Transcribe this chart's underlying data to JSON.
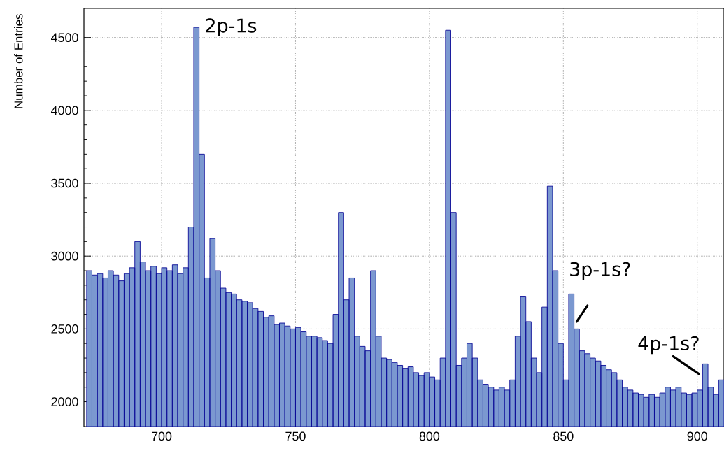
{
  "chart_data": {
    "type": "histogram",
    "ylabel": "Number of Entries",
    "bins": [
      672,
      674,
      676,
      678,
      680,
      682,
      684,
      686,
      688,
      690,
      692,
      694,
      696,
      698,
      700,
      702,
      704,
      706,
      708,
      710,
      712,
      714,
      716,
      718,
      720,
      722,
      724,
      726,
      728,
      730,
      732,
      734,
      736,
      738,
      740,
      742,
      744,
      746,
      748,
      750,
      752,
      754,
      756,
      758,
      760,
      762,
      764,
      766,
      768,
      770,
      772,
      774,
      776,
      778,
      780,
      782,
      784,
      786,
      788,
      790,
      792,
      794,
      796,
      798,
      800,
      802,
      804,
      806,
      808,
      810,
      812,
      814,
      816,
      818,
      820,
      822,
      824,
      826,
      828,
      830,
      832,
      834,
      836,
      838,
      840,
      842,
      844,
      846,
      848,
      850,
      852,
      854,
      856,
      858,
      860,
      862,
      864,
      866,
      868,
      870,
      872,
      874,
      876,
      878,
      880,
      882,
      884,
      886,
      888,
      890,
      892,
      894,
      896,
      898,
      900,
      902,
      904,
      906,
      908,
      910
    ],
    "values": [
      2900,
      2870,
      2880,
      2850,
      2900,
      2870,
      2830,
      2880,
      2920,
      3100,
      2960,
      2900,
      2930,
      2880,
      2920,
      2900,
      2940,
      2880,
      2920,
      3200,
      4570,
      3700,
      2850,
      3120,
      2900,
      2780,
      2750,
      2740,
      2700,
      2690,
      2680,
      2640,
      2620,
      2580,
      2590,
      2530,
      2540,
      2520,
      2500,
      2510,
      2480,
      2450,
      2450,
      2440,
      2420,
      2400,
      2600,
      3300,
      2700,
      2850,
      2450,
      2380,
      2350,
      2900,
      2450,
      2300,
      2290,
      2270,
      2250,
      2230,
      2240,
      2200,
      2180,
      2200,
      2170,
      2150,
      2300,
      4550,
      3300,
      2250,
      2300,
      2400,
      2300,
      2150,
      2120,
      2100,
      2080,
      2100,
      2080,
      2150,
      2450,
      2720,
      2550,
      2300,
      2200,
      2650,
      3480,
      2900,
      2400,
      2150,
      2740,
      2500,
      2350,
      2330,
      2300,
      2280,
      2250,
      2220,
      2200,
      2150,
      2100,
      2080,
      2060,
      2050,
      2030,
      2050,
      2030,
      2060,
      2100,
      2080,
      2100,
      2060,
      2050,
      2060,
      2080,
      2260,
      2100,
      2050,
      2150
    ],
    "color": "#7b98d0",
    "xlim": [
      671,
      910
    ],
    "ylim": [
      1830,
      4700
    ],
    "xticks": [
      700,
      750,
      800,
      850,
      900
    ],
    "yticks": [
      2000,
      2500,
      3000,
      3500,
      4000,
      4500
    ],
    "grid": true,
    "annotations": [
      {
        "text": "2p-1s",
        "x": 713,
        "y": 4570
      },
      {
        "text": "3p-1s?",
        "x": 853,
        "y": 2740
      },
      {
        "text": "4p-1s?",
        "x": 903,
        "y": 2260
      }
    ]
  }
}
